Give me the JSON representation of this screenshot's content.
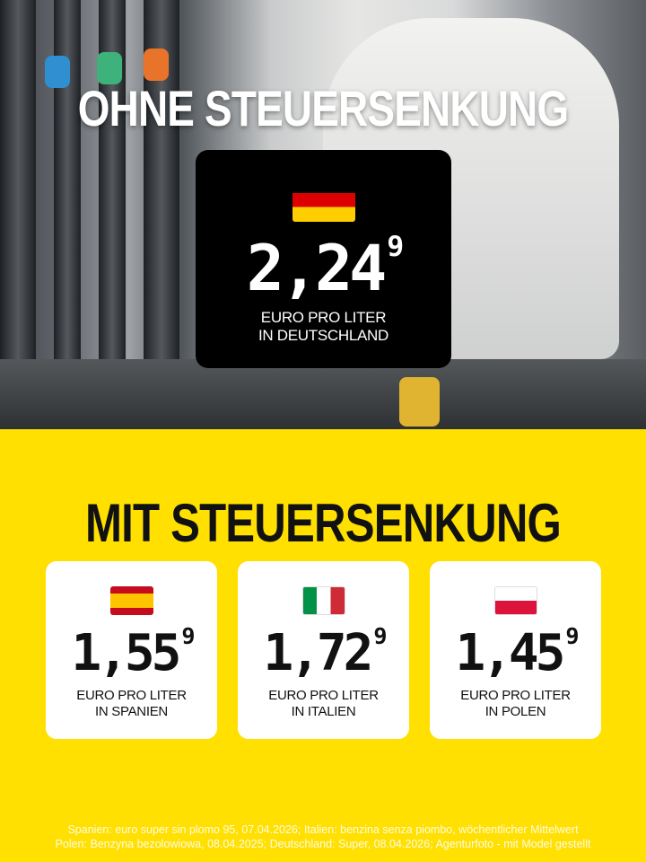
{
  "top": {
    "title": "OHNE STEUERSENKUNG",
    "germany": {
      "country_flag": "germany-flag",
      "price_main": "2,24",
      "price_sup": "9",
      "unit_line1": "EURO PRO LITER",
      "unit_line2": "IN DEUTSCHLAND"
    }
  },
  "bottom": {
    "title": "MIT STEUERSENKUNG",
    "cards": [
      {
        "country_flag": "spain-flag",
        "price_main": "1,55",
        "price_sup": "9",
        "unit_line1": "EURO PRO LITER",
        "unit_line2": "IN SPANIEN"
      },
      {
        "country_flag": "italy-flag",
        "price_main": "1,72",
        "price_sup": "9",
        "unit_line1": "EURO PRO LITER",
        "unit_line2": "IN ITALIEN"
      },
      {
        "country_flag": "poland-flag",
        "price_main": "1,45",
        "price_sup": "9",
        "unit_line1": "EURO PRO LITER",
        "unit_line2": "IN POLEN"
      }
    ]
  },
  "footer": {
    "line1": "Spanien: euro super sin plomo 95, 07.04.2026; Italien: benzina senza piombo, wöchentlicher Mittelwert",
    "line2": "Polen: Benzyna bezolowiowa, 08.04.2025; Deutschland: Super, 08.04.2026; Agenturfoto - mit Model gestellt"
  },
  "colors": {
    "background": "#FFE000",
    "card_dark": "#000000",
    "card_light": "#FFFFFF"
  }
}
